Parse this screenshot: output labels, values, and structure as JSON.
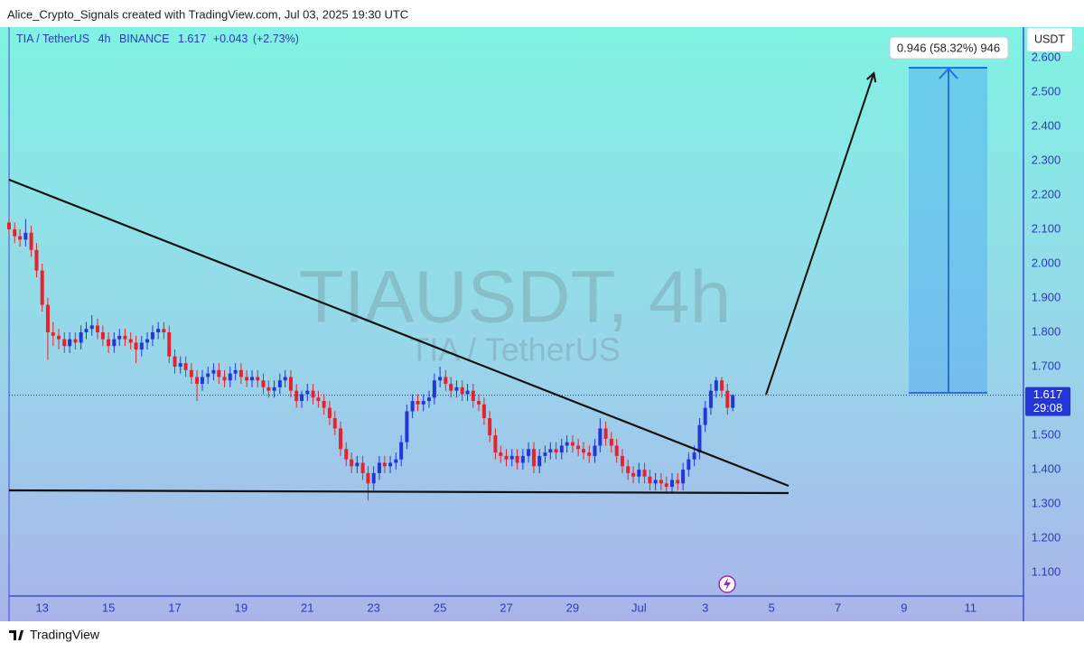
{
  "header": "Alice_Crypto_Signals created with TradingView.com, Jul 03, 2025 19:30 UTC",
  "footer": "TradingView",
  "chart_data": {
    "type": "candlestick",
    "symbol": "TIA / TetherUS",
    "interval": "4h",
    "exchange": "BINANCE",
    "last_price": 1.617,
    "change": "+0.043",
    "change_pct": "(+2.73%)",
    "countdown": "29:08",
    "watermark": "TIAUSDT, 4h",
    "y_unit": "USDT",
    "measure_label": "0.946 (58.32%) 946",
    "up_color": "#2536d6",
    "down_color": "#e8222c",
    "grid": false,
    "xlim": [
      12,
      42.6
    ],
    "ylim": [
      1.032,
      2.689
    ],
    "xticks": [
      13,
      15,
      17,
      19,
      21,
      23,
      25,
      27,
      29,
      {
        "value": 31,
        "label": "Jul"
      },
      {
        "value": 33,
        "label": "3"
      },
      {
        "value": 35,
        "label": "5"
      },
      {
        "value": 37,
        "label": "7"
      },
      {
        "value": 39,
        "label": "9"
      },
      {
        "value": 41,
        "label": "11"
      }
    ],
    "yticks": [
      {
        "value": 1.1,
        "label": "1.100"
      },
      {
        "value": 1.2,
        "label": "1.200"
      },
      {
        "value": 1.3,
        "label": "1.300"
      },
      {
        "value": 1.4,
        "label": "1.400"
      },
      {
        "value": 1.5,
        "label": "1.500"
      },
      {
        "value": 1.6,
        "label": "1.600"
      },
      {
        "value": 1.7,
        "label": "1.700"
      },
      {
        "value": 1.8,
        "label": "1.800"
      },
      {
        "value": 1.9,
        "label": "1.900"
      },
      {
        "value": 2.0,
        "label": "2.000"
      },
      {
        "value": 2.1,
        "label": "2.100"
      },
      {
        "value": 2.2,
        "label": "2.200"
      },
      {
        "value": 2.3,
        "label": "2.300"
      },
      {
        "value": 2.4,
        "label": "2.400"
      },
      {
        "value": 2.5,
        "label": "2.500"
      },
      {
        "value": 2.6,
        "label": "2.600"
      }
    ],
    "x": [
      12,
      12.17,
      12.33,
      12.5,
      12.67,
      12.83,
      13,
      13.17,
      13.33,
      13.5,
      13.67,
      13.83,
      14,
      14.17,
      14.33,
      14.5,
      14.67,
      14.83,
      15,
      15.17,
      15.33,
      15.5,
      15.67,
      15.83,
      16,
      16.17,
      16.33,
      16.5,
      16.67,
      16.83,
      17,
      17.17,
      17.33,
      17.5,
      17.67,
      17.83,
      18,
      18.17,
      18.33,
      18.5,
      18.67,
      18.83,
      19,
      19.17,
      19.33,
      19.5,
      19.67,
      19.83,
      20,
      20.17,
      20.33,
      20.5,
      20.67,
      20.83,
      21,
      21.17,
      21.33,
      21.5,
      21.67,
      21.83,
      22,
      22.17,
      22.33,
      22.5,
      22.67,
      22.83,
      23,
      23.17,
      23.33,
      23.5,
      23.67,
      23.83,
      24,
      24.17,
      24.33,
      24.5,
      24.67,
      24.83,
      25,
      25.17,
      25.33,
      25.5,
      25.67,
      25.83,
      26,
      26.17,
      26.33,
      26.5,
      26.67,
      26.83,
      27,
      27.17,
      27.33,
      27.5,
      27.67,
      27.83,
      28,
      28.17,
      28.33,
      28.5,
      28.67,
      28.83,
      29,
      29.17,
      29.33,
      29.5,
      29.67,
      29.83,
      30,
      30.17,
      30.33,
      30.5,
      30.67,
      30.83,
      31,
      31.17,
      31.33,
      31.5,
      31.67,
      31.83,
      32,
      32.17,
      32.33,
      32.5,
      32.67,
      32.83,
      33,
      33.17,
      33.33,
      33.5,
      33.67,
      33.83
    ],
    "open": [
      2.12,
      2.1,
      2.08,
      2.07,
      2.09,
      2.04,
      1.98,
      1.88,
      1.8,
      1.79,
      1.78,
      1.76,
      1.78,
      1.77,
      1.8,
      1.81,
      1.82,
      1.8,
      1.78,
      1.76,
      1.78,
      1.79,
      1.78,
      1.77,
      1.75,
      1.77,
      1.78,
      1.8,
      1.81,
      1.8,
      1.73,
      1.7,
      1.71,
      1.69,
      1.67,
      1.65,
      1.67,
      1.68,
      1.69,
      1.67,
      1.66,
      1.68,
      1.69,
      1.67,
      1.66,
      1.67,
      1.66,
      1.64,
      1.63,
      1.64,
      1.66,
      1.67,
      1.63,
      1.6,
      1.62,
      1.63,
      1.61,
      1.6,
      1.58,
      1.55,
      1.52,
      1.46,
      1.43,
      1.41,
      1.42,
      1.39,
      1.36,
      1.39,
      1.42,
      1.41,
      1.42,
      1.43,
      1.48,
      1.57,
      1.6,
      1.59,
      1.6,
      1.61,
      1.66,
      1.67,
      1.65,
      1.63,
      1.64,
      1.62,
      1.63,
      1.6,
      1.59,
      1.55,
      1.5,
      1.45,
      1.44,
      1.43,
      1.44,
      1.42,
      1.44,
      1.46,
      1.41,
      1.44,
      1.45,
      1.46,
      1.45,
      1.47,
      1.48,
      1.47,
      1.46,
      1.45,
      1.44,
      1.47,
      1.52,
      1.49,
      1.47,
      1.44,
      1.41,
      1.39,
      1.38,
      1.4,
      1.38,
      1.36,
      1.37,
      1.36,
      1.35,
      1.37,
      1.36,
      1.4,
      1.43,
      1.45,
      1.53,
      1.58,
      1.63,
      1.66,
      1.63,
      1.58
    ],
    "high": [
      2.14,
      2.12,
      2.1,
      2.13,
      2.11,
      2.06,
      2.0,
      1.9,
      1.83,
      1.81,
      1.8,
      1.8,
      1.8,
      1.82,
      1.83,
      1.85,
      1.84,
      1.82,
      1.8,
      1.8,
      1.81,
      1.81,
      1.8,
      1.79,
      1.79,
      1.8,
      1.82,
      1.83,
      1.83,
      1.82,
      1.75,
      1.73,
      1.73,
      1.71,
      1.69,
      1.69,
      1.7,
      1.71,
      1.71,
      1.69,
      1.7,
      1.71,
      1.71,
      1.69,
      1.69,
      1.69,
      1.68,
      1.66,
      1.66,
      1.68,
      1.69,
      1.69,
      1.65,
      1.63,
      1.65,
      1.65,
      1.63,
      1.62,
      1.6,
      1.57,
      1.54,
      1.48,
      1.45,
      1.44,
      1.44,
      1.41,
      1.41,
      1.44,
      1.44,
      1.44,
      1.45,
      1.5,
      1.59,
      1.62,
      1.62,
      1.62,
      1.63,
      1.68,
      1.7,
      1.69,
      1.67,
      1.66,
      1.66,
      1.65,
      1.65,
      1.62,
      1.61,
      1.57,
      1.52,
      1.47,
      1.46,
      1.46,
      1.46,
      1.46,
      1.48,
      1.48,
      1.46,
      1.47,
      1.48,
      1.48,
      1.49,
      1.5,
      1.5,
      1.49,
      1.48,
      1.47,
      1.49,
      1.55,
      1.54,
      1.51,
      1.49,
      1.46,
      1.43,
      1.41,
      1.42,
      1.42,
      1.4,
      1.39,
      1.39,
      1.38,
      1.39,
      1.39,
      1.42,
      1.45,
      1.47,
      1.55,
      1.6,
      1.65,
      1.67,
      1.67,
      1.65,
      1.62
    ],
    "low": [
      2.08,
      2.06,
      2.05,
      2.05,
      2.02,
      1.96,
      1.86,
      1.72,
      1.76,
      1.75,
      1.74,
      1.74,
      1.75,
      1.75,
      1.78,
      1.79,
      1.78,
      1.76,
      1.74,
      1.74,
      1.76,
      1.76,
      1.75,
      1.71,
      1.73,
      1.75,
      1.76,
      1.78,
      1.78,
      1.71,
      1.68,
      1.68,
      1.67,
      1.65,
      1.6,
      1.63,
      1.65,
      1.66,
      1.65,
      1.64,
      1.64,
      1.66,
      1.65,
      1.64,
      1.64,
      1.64,
      1.62,
      1.61,
      1.61,
      1.62,
      1.64,
      1.61,
      1.58,
      1.58,
      1.6,
      1.59,
      1.58,
      1.56,
      1.53,
      1.5,
      1.44,
      1.41,
      1.39,
      1.39,
      1.37,
      1.31,
      1.34,
      1.37,
      1.39,
      1.39,
      1.4,
      1.41,
      1.46,
      1.55,
      1.57,
      1.57,
      1.58,
      1.59,
      1.64,
      1.63,
      1.61,
      1.61,
      1.6,
      1.6,
      1.58,
      1.57,
      1.53,
      1.48,
      1.43,
      1.42,
      1.41,
      1.41,
      1.4,
      1.4,
      1.42,
      1.39,
      1.39,
      1.42,
      1.43,
      1.43,
      1.43,
      1.45,
      1.45,
      1.44,
      1.43,
      1.42,
      1.42,
      1.45,
      1.47,
      1.45,
      1.42,
      1.39,
      1.37,
      1.36,
      1.36,
      1.36,
      1.34,
      1.34,
      1.34,
      1.33,
      1.33,
      1.34,
      1.34,
      1.38,
      1.41,
      1.43,
      1.51,
      1.56,
      1.61,
      1.61,
      1.56,
      1.57
    ],
    "close": [
      2.1,
      2.08,
      2.07,
      2.09,
      2.04,
      1.98,
      1.88,
      1.8,
      1.79,
      1.78,
      1.76,
      1.78,
      1.77,
      1.8,
      1.81,
      1.82,
      1.8,
      1.78,
      1.76,
      1.78,
      1.79,
      1.78,
      1.77,
      1.75,
      1.77,
      1.78,
      1.8,
      1.81,
      1.8,
      1.73,
      1.7,
      1.71,
      1.69,
      1.67,
      1.65,
      1.67,
      1.68,
      1.69,
      1.67,
      1.66,
      1.68,
      1.69,
      1.67,
      1.66,
      1.67,
      1.66,
      1.64,
      1.63,
      1.64,
      1.66,
      1.67,
      1.63,
      1.6,
      1.62,
      1.63,
      1.61,
      1.6,
      1.58,
      1.55,
      1.52,
      1.46,
      1.43,
      1.41,
      1.42,
      1.39,
      1.36,
      1.39,
      1.42,
      1.41,
      1.42,
      1.43,
      1.48,
      1.57,
      1.6,
      1.59,
      1.6,
      1.61,
      1.66,
      1.67,
      1.65,
      1.63,
      1.64,
      1.62,
      1.63,
      1.6,
      1.59,
      1.55,
      1.5,
      1.45,
      1.44,
      1.43,
      1.44,
      1.42,
      1.44,
      1.46,
      1.41,
      1.44,
      1.45,
      1.46,
      1.45,
      1.47,
      1.48,
      1.47,
      1.46,
      1.45,
      1.44,
      1.47,
      1.52,
      1.49,
      1.47,
      1.44,
      1.41,
      1.39,
      1.38,
      1.4,
      1.38,
      1.36,
      1.37,
      1.36,
      1.35,
      1.37,
      1.36,
      1.4,
      1.43,
      1.45,
      1.53,
      1.58,
      1.63,
      1.66,
      1.63,
      1.58,
      1.617
    ]
  }
}
